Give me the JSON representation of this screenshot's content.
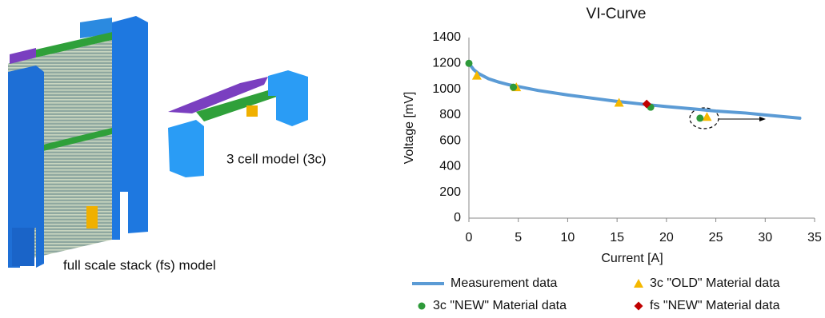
{
  "illustration": {
    "labels": [
      "3 cell model (3c)",
      "full scale stack (fs) model"
    ]
  },
  "chart_data": {
    "type": "line",
    "title": "VI-Curve",
    "x_label": "Current [A]",
    "y_label": "Voltage [mV]",
    "xlim": [
      0,
      35
    ],
    "xticks": [
      0,
      5,
      10,
      15,
      20,
      25,
      30,
      35
    ],
    "ylim": [
      0,
      1400
    ],
    "yticks": [
      0,
      200,
      400,
      600,
      800,
      1000,
      1200,
      1400
    ],
    "grid": false,
    "legend": "bottom",
    "series": [
      {
        "name": "Measurement data",
        "color": "#5b9bd5",
        "marker": "line",
        "x": [
          0,
          0.5,
          1,
          2,
          3,
          4,
          5,
          7,
          10,
          13,
          15,
          18,
          20,
          23,
          25,
          28,
          30,
          33.5
        ],
        "values": [
          1200,
          1150,
          1120,
          1080,
          1055,
          1035,
          1020,
          990,
          955,
          925,
          905,
          880,
          865,
          845,
          830,
          815,
          800,
          775
        ]
      },
      {
        "name": "3c \"OLD\" Material data",
        "color": "#f5b800",
        "marker": "triangle",
        "x": [
          0.8,
          4.8,
          15.2,
          24.1
        ],
        "values": [
          1105,
          1015,
          895,
          785
        ]
      },
      {
        "name": "3c \"NEW\" Material data",
        "color": "#2e9a3a",
        "marker": "circle",
        "x": [
          0,
          4.5,
          18.4,
          23.4
        ],
        "values": [
          1200,
          1015,
          860,
          775
        ]
      },
      {
        "name": "fs \"NEW\" Material data",
        "color": "#c00000",
        "marker": "diamond",
        "x": [
          18
        ],
        "values": [
          885
        ]
      }
    ]
  }
}
